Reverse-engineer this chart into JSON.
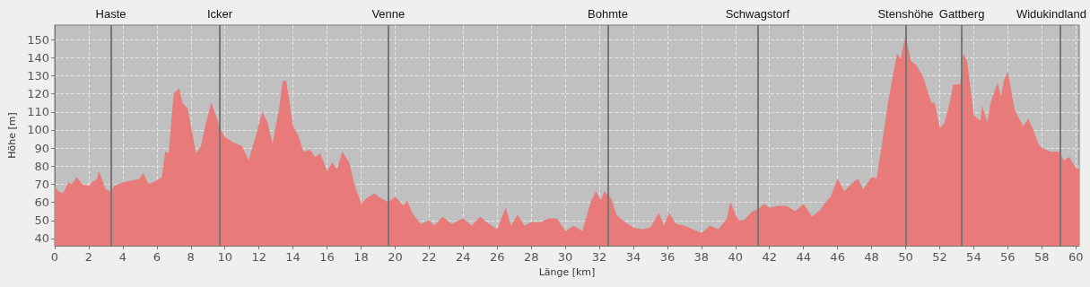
{
  "chart_data": {
    "type": "area",
    "xlabel": "Länge [km]",
    "ylabel": "Höhe [m]",
    "x": [
      0,
      0.2,
      0.5,
      0.8,
      1.0,
      1.3,
      1.6,
      2.0,
      2.2,
      2.5,
      2.6,
      3.0,
      3.3,
      3.5,
      4.0,
      4.5,
      5.0,
      5.2,
      5.5,
      6.0,
      6.3,
      6.5,
      6.7,
      6.9,
      7.0,
      7.3,
      7.5,
      7.8,
      8.0,
      8.3,
      8.6,
      8.9,
      9.2,
      9.5,
      9.7,
      10.0,
      10.5,
      11.0,
      11.4,
      11.8,
      12.2,
      12.5,
      12.8,
      13.2,
      13.4,
      13.6,
      14.0,
      14.3,
      14.6,
      15.0,
      15.3,
      15.6,
      16.0,
      16.3,
      16.6,
      16.9,
      17.3,
      17.6,
      18.0,
      18.3,
      18.8,
      19.0,
      19.6,
      20.0,
      20.5,
      20.7,
      21.0,
      21.5,
      22.0,
      22.3,
      22.8,
      23.3,
      24.0,
      24.5,
      25.0,
      25.5,
      26.0,
      26.5,
      26.8,
      27.2,
      27.6,
      28.0,
      28.6,
      29.0,
      29.5,
      30.0,
      30.5,
      31.0,
      31.5,
      31.8,
      32.1,
      32.3,
      32.7,
      33.0,
      33.5,
      34.0,
      34.5,
      35.0,
      35.5,
      35.8,
      36.1,
      36.5,
      37.0,
      37.5,
      38.0,
      38.5,
      39.0,
      39.5,
      39.7,
      40.0,
      40.2,
      40.5,
      41.0,
      41.3,
      41.7,
      42.0,
      42.5,
      43.0,
      43.5,
      44.0,
      44.5,
      45.0,
      45.3,
      45.6,
      46.0,
      46.4,
      46.8,
      47.2,
      47.5,
      48.0,
      48.3,
      48.6,
      49.0,
      49.5,
      49.7,
      50.0,
      50.3,
      50.6,
      51.0,
      51.5,
      51.7,
      52.0,
      52.3,
      52.6,
      52.8,
      53.2,
      53.4,
      53.6,
      54.0,
      54.4,
      54.5,
      54.8,
      55.0,
      55.4,
      55.6,
      55.8,
      56.0,
      56.4,
      56.9,
      57.2,
      57.5,
      57.8,
      58.0,
      58.5,
      59.0,
      59.3,
      59.6,
      60.0,
      60.2
    ],
    "series": [
      {
        "color": "#e87a79",
        "values": [
          69,
          66,
          65,
          71,
          70,
          74,
          70,
          69,
          71,
          73,
          77,
          67,
          66,
          69,
          71,
          72,
          73,
          76,
          70,
          72,
          74,
          88,
          87,
          109,
          120,
          123,
          115,
          112,
          102,
          87,
          91,
          104,
          115,
          107,
          101,
          96,
          93,
          91,
          83,
          96,
          110,
          104,
          92,
          112,
          127,
          127,
          102,
          97,
          88,
          89,
          85,
          87,
          77,
          82,
          78,
          88,
          82,
          70,
          59,
          62,
          65,
          63,
          60,
          63,
          58,
          61,
          54,
          48,
          50,
          47,
          52,
          48,
          51,
          47,
          52,
          48,
          45,
          57,
          47,
          53,
          47,
          49,
          49,
          51,
          51,
          44,
          47,
          44,
          60,
          66,
          61,
          66,
          62,
          53,
          49,
          46,
          45,
          46,
          54,
          47,
          54,
          48,
          47,
          45,
          43,
          47,
          45,
          51,
          60,
          53,
          50,
          50,
          55,
          56,
          59,
          57,
          58,
          58,
          55,
          59,
          52,
          56,
          60,
          63,
          73,
          66,
          70,
          73,
          67,
          74,
          73,
          91,
          117,
          142,
          139,
          152,
          138,
          136,
          130,
          115,
          115,
          101,
          104,
          115,
          125,
          125,
          142,
          138,
          108,
          105,
          113,
          104,
          115,
          126,
          118,
          128,
          132,
          111,
          102,
          106,
          100,
          92,
          90,
          88,
          88,
          83,
          85,
          79,
          78
        ]
      }
    ],
    "xlim": [
      0,
      60.2
    ],
    "xticks": [
      0,
      2,
      4,
      6,
      8,
      10,
      12,
      14,
      16,
      18,
      20,
      22,
      24,
      26,
      28,
      30,
      32,
      34,
      36,
      38,
      40,
      42,
      44,
      46,
      48,
      50,
      52,
      54,
      56,
      58,
      60
    ],
    "ylim": [
      36,
      158
    ],
    "yticks": [
      40,
      50,
      60,
      70,
      80,
      90,
      100,
      110,
      120,
      130,
      140,
      150
    ],
    "grid": true,
    "marker": "none",
    "ref_lines": [
      {
        "axis": "x",
        "value": 3.3,
        "label": "Haste",
        "color": "#777777"
      },
      {
        "axis": "x",
        "value": 9.7,
        "label": "Icker",
        "color": "#777777"
      },
      {
        "axis": "x",
        "value": 19.6,
        "label": "Venne",
        "color": "#777777"
      },
      {
        "axis": "x",
        "value": 32.5,
        "label": "Bohmte",
        "color": "#777777"
      },
      {
        "axis": "x",
        "value": 41.3,
        "label": "Schwagstorf",
        "color": "#777777"
      },
      {
        "axis": "x",
        "value": 50.0,
        "label": "Stenshöhe",
        "color": "#777777"
      },
      {
        "axis": "x",
        "value": 53.3,
        "label": "Gattberg",
        "color": "#777777"
      },
      {
        "axis": "x",
        "value": 59.1,
        "label": "Widukindland",
        "color": "#777777"
      }
    ]
  }
}
